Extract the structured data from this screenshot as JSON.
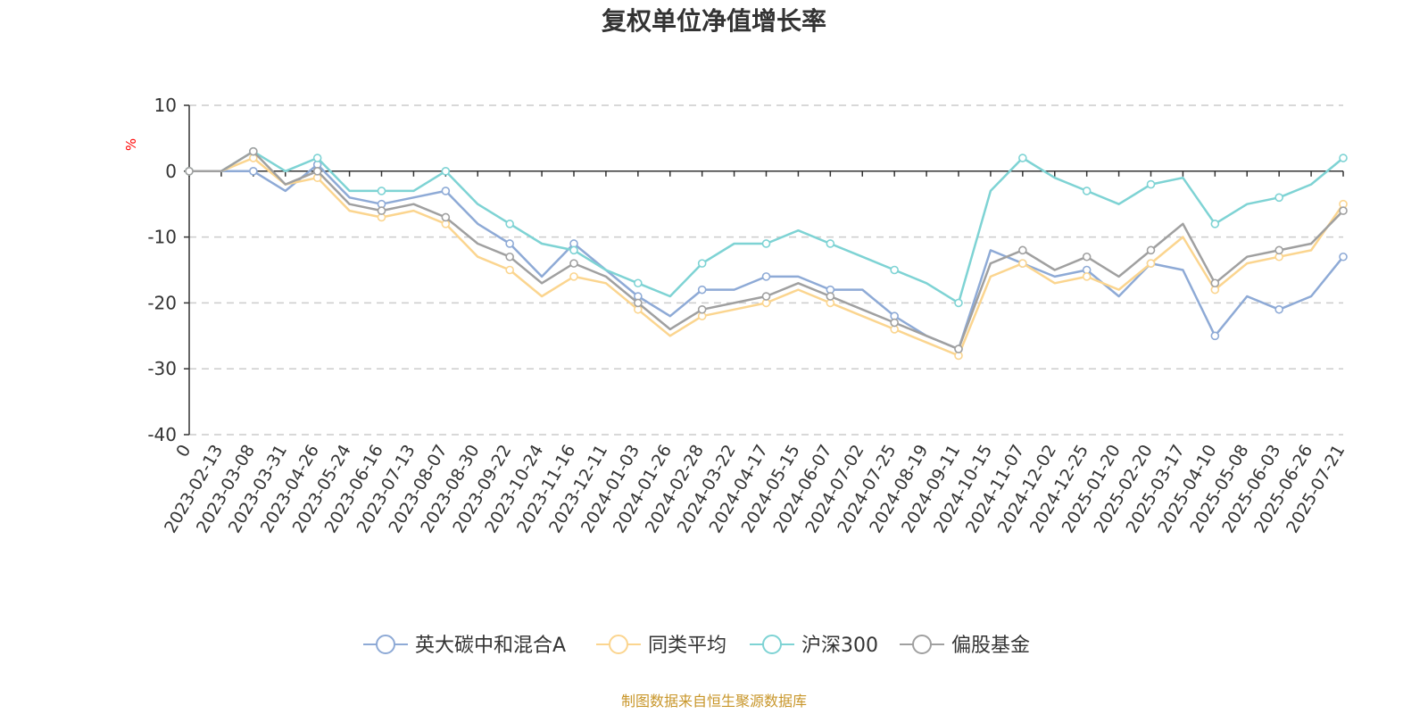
{
  "chart_data": {
    "type": "line",
    "title": "复权单位净值增长率",
    "ylabel": "%",
    "ylim": [
      -40,
      10
    ],
    "yticks": [
      "10",
      "0",
      "-10",
      "-20",
      "-30",
      "-40"
    ],
    "x_start_label": "0",
    "categories": [
      "2023-02-13",
      "2023-03-08",
      "2023-03-31",
      "2023-04-26",
      "2023-05-24",
      "2023-06-16",
      "2023-07-13",
      "2023-08-07",
      "2023-08-30",
      "2023-09-22",
      "2023-10-24",
      "2023-11-16",
      "2023-12-11",
      "2024-01-03",
      "2024-01-26",
      "2024-02-28",
      "2024-03-22",
      "2024-04-17",
      "2024-05-15",
      "2024-06-07",
      "2024-07-02",
      "2024-07-25",
      "2024-08-19",
      "2024-09-11",
      "2024-10-15",
      "2024-11-07",
      "2024-12-02",
      "2024-12-25",
      "2025-01-20",
      "2025-02-20",
      "2025-03-17",
      "2025-04-10",
      "2025-05-08",
      "2025-06-03",
      "2025-06-26",
      "2025-07-21"
    ],
    "grid": true,
    "legend_position": "bottom",
    "series": [
      {
        "name": "英大碳中和混合A",
        "color": "#8eaad6",
        "values": [
          0,
          0,
          -3,
          1,
          -4,
          -5,
          -4,
          -3,
          -8,
          -11,
          -16,
          -11,
          -15,
          -19,
          -22,
          -18,
          -18,
          -16,
          -16,
          -18,
          -18,
          -22,
          -25,
          -27,
          -12,
          -14,
          -16,
          -15,
          -19,
          -14,
          -15,
          -25,
          -19,
          -21,
          -19,
          -13
        ]
      },
      {
        "name": "同类平均",
        "color": "#fbd58f",
        "values": [
          0,
          2,
          -2,
          -1,
          -6,
          -7,
          -6,
          -8,
          -13,
          -15,
          -19,
          -16,
          -17,
          -21,
          -25,
          -22,
          -21,
          -20,
          -18,
          -20,
          -22,
          -24,
          -26,
          -28,
          -16,
          -14,
          -17,
          -16,
          -18,
          -14,
          -10,
          -18,
          -14,
          -13,
          -12,
          -5
        ]
      },
      {
        "name": "沪深300",
        "color": "#7ed3d4",
        "values": [
          0,
          3,
          0,
          2,
          -3,
          -3,
          -3,
          0,
          -5,
          -8,
          -11,
          -12,
          -15,
          -17,
          -19,
          -14,
          -11,
          -11,
          -9,
          -11,
          -13,
          -15,
          -17,
          -20,
          -3,
          2,
          -1,
          -3,
          -5,
          -2,
          -1,
          -8,
          -5,
          -4,
          -2,
          2
        ]
      },
      {
        "name": "偏股基金",
        "color": "#a0a0a0",
        "values": [
          0,
          3,
          -2,
          0,
          -5,
          -6,
          -5,
          -7,
          -11,
          -13,
          -17,
          -14,
          -16,
          -20,
          -24,
          -21,
          -20,
          -19,
          -17,
          -19,
          -21,
          -23,
          -25,
          -27,
          -14,
          -12,
          -15,
          -13,
          -16,
          -12,
          -8,
          -17,
          -13,
          -12,
          -11,
          -6
        ]
      }
    ]
  },
  "footer": {
    "source": "制图数据来自恒生聚源数据库"
  }
}
